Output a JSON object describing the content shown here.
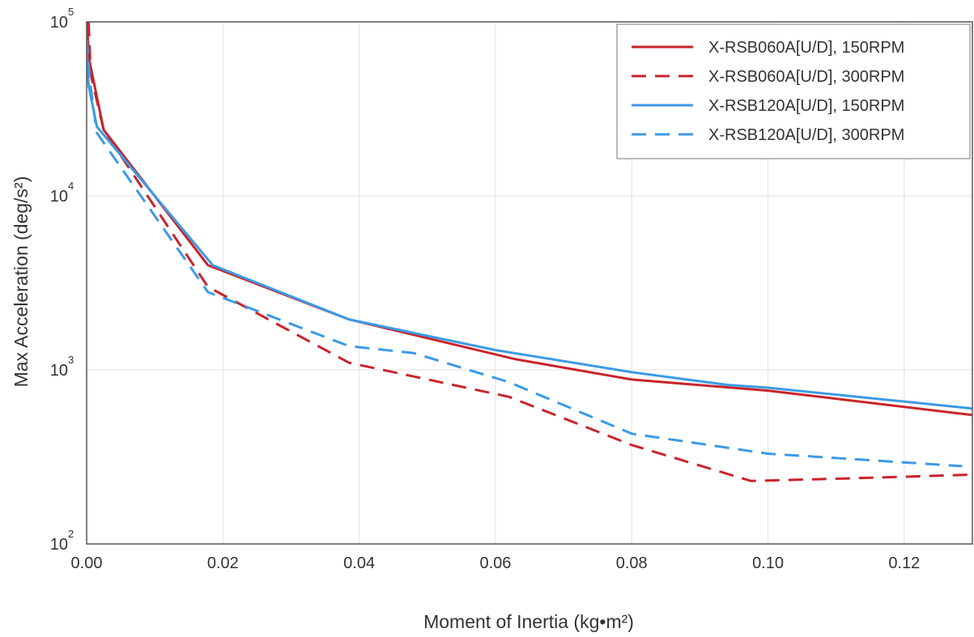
{
  "chart_data": {
    "type": "line",
    "xlabel": "Moment of Inertia (kg•m²)",
    "ylabel": "Max Acceleration (deg/s²)",
    "xlim": [
      0,
      0.13
    ],
    "ylim": [
      100,
      100000
    ],
    "yscale": "log",
    "grid": true,
    "legend_position": "top-right",
    "x_ticks": [
      "0.00",
      "0.02",
      "0.04",
      "0.06",
      "0.08",
      "0.10",
      "0.12"
    ],
    "x_tick_values": [
      0,
      0.02,
      0.04,
      0.06,
      0.08,
      0.1,
      0.12
    ],
    "y_ticks": [
      {
        "value": 100,
        "base": "10",
        "exp": "2"
      },
      {
        "value": 1000,
        "base": "10",
        "exp": "3"
      },
      {
        "value": 10000,
        "base": "10",
        "exp": "4"
      },
      {
        "value": 100000,
        "base": "10",
        "exp": "5"
      }
    ],
    "series": [
      {
        "name": "X-RSB060A[U/D], 150RPM",
        "color": "#c8242b",
        "style": "solid",
        "x": [
          0.0,
          0.0004,
          0.0025,
          0.0178,
          0.0385,
          0.063,
          0.08,
          0.1,
          0.13
        ],
        "y": [
          100000,
          60000,
          24000,
          4000,
          1950,
          1150,
          880,
          760,
          550
        ]
      },
      {
        "name": "X-RSB060A[U/D], 300RPM",
        "color": "#c8242b",
        "style": "dashed",
        "x": [
          0.0003,
          0.0006,
          0.0025,
          0.0178,
          0.0385,
          0.062,
          0.08,
          0.0975,
          0.115,
          0.13
        ],
        "y": [
          100000,
          50000,
          24000,
          3000,
          1100,
          700,
          370,
          230,
          240,
          250
        ]
      },
      {
        "name": "X-RSB120A[U/D], 150RPM",
        "color": "#3b9ae6",
        "style": "solid",
        "x": [
          0.0,
          0.0003,
          0.0015,
          0.0185,
          0.0385,
          0.06,
          0.08,
          0.094,
          0.1,
          0.13
        ],
        "y": [
          70000,
          43000,
          25000,
          4000,
          1950,
          1300,
          970,
          820,
          790,
          600
        ]
      },
      {
        "name": "X-RSB120A[U/D], 300RPM",
        "color": "#3b9ae6",
        "style": "dashed",
        "x": [
          0.0,
          0.0005,
          0.0015,
          0.0178,
          0.0385,
          0.048,
          0.062,
          0.08,
          0.1,
          0.1285
        ],
        "y": [
          80000,
          45000,
          23000,
          2800,
          1370,
          1250,
          850,
          430,
          330,
          280
        ]
      }
    ]
  }
}
